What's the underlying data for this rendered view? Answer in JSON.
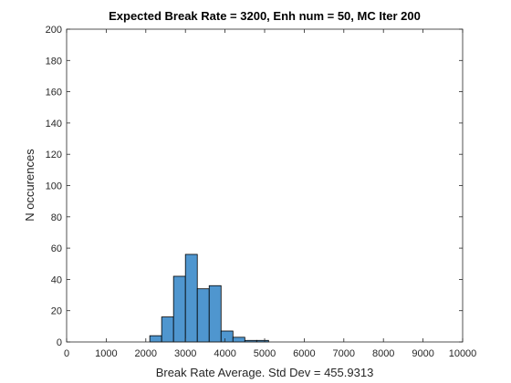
{
  "chart_data": {
    "type": "bar",
    "title": "Expected Break Rate = 3200, Enh num = 50, MC Iter 200",
    "xlabel": "Break Rate Average. Std Dev = 455.9313",
    "ylabel": "N occurences",
    "xlim": [
      0,
      10000
    ],
    "ylim": [
      0,
      200
    ],
    "xticks": [
      0,
      1000,
      2000,
      3000,
      4000,
      5000,
      6000,
      7000,
      8000,
      9000,
      10000
    ],
    "yticks": [
      0,
      20,
      40,
      60,
      80,
      100,
      120,
      140,
      160,
      180,
      200
    ],
    "bin_width": 300,
    "bins": [
      {
        "x0": 2100,
        "x1": 2400,
        "value": 4
      },
      {
        "x0": 2400,
        "x1": 2700,
        "value": 16
      },
      {
        "x0": 2700,
        "x1": 3000,
        "value": 42
      },
      {
        "x0": 3000,
        "x1": 3300,
        "value": 56
      },
      {
        "x0": 3300,
        "x1": 3600,
        "value": 34
      },
      {
        "x0": 3600,
        "x1": 3900,
        "value": 36
      },
      {
        "x0": 3900,
        "x1": 4200,
        "value": 7
      },
      {
        "x0": 4200,
        "x1": 4500,
        "value": 3
      },
      {
        "x0": 4500,
        "x1": 4800,
        "value": 1
      },
      {
        "x0": 4800,
        "x1": 5100,
        "value": 1
      }
    ],
    "grid": false,
    "bar_color": "#4f96cf",
    "edge_color": "#000000"
  }
}
